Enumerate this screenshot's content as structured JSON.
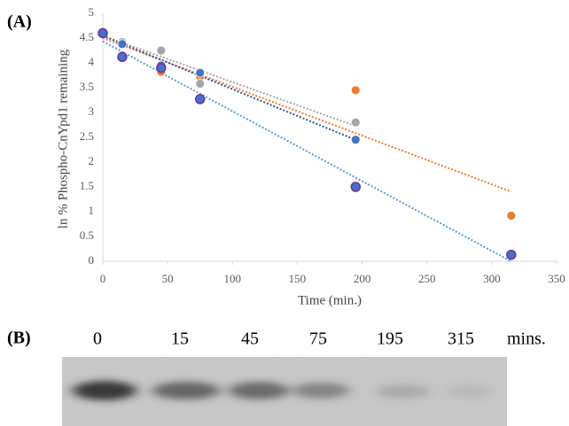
{
  "panel_labels": [
    "(A)",
    "(B)"
  ],
  "chart_data": {
    "type": "scatter",
    "xlabel": "Time (min.)",
    "ylabel": "ln % Phospho-CnYpd1 remaining",
    "x": [
      0,
      15,
      45,
      75,
      195,
      315
    ],
    "series": [
      {
        "color": "#ed7d31",
        "trendline_color": "#ed7d31",
        "values": [
          4.6,
          4.15,
          3.82,
          3.72,
          3.45,
          0.92
        ]
      },
      {
        "color": "#a5a5a5",
        "trendline_color": "#a5a5a5",
        "values": [
          4.6,
          4.42,
          4.25,
          3.58,
          2.8,
          null
        ]
      },
      {
        "color": "#4472c4",
        "trendline_color": "#2f5597",
        "values": [
          4.6,
          4.38,
          3.95,
          3.8,
          2.45,
          null
        ]
      },
      {
        "color": "#4472c4",
        "edgecolor": "#7030a0",
        "trendline_color": "#5b9bd5",
        "values": [
          4.6,
          4.12,
          3.9,
          3.27,
          1.5,
          0.13
        ]
      }
    ],
    "trendline": true,
    "xlim": [
      0,
      350
    ],
    "xticks": [
      0,
      50,
      100,
      150,
      200,
      250,
      300,
      350
    ],
    "ylim": [
      0,
      5
    ],
    "yticks": [
      0,
      0.5,
      1,
      1.5,
      2,
      2.5,
      3,
      3.5,
      4,
      4.5,
      5
    ],
    "grid": false
  },
  "gel": {
    "lanes": [
      "0",
      "15",
      "45",
      "75",
      "195",
      "315"
    ],
    "unit": "mins."
  }
}
